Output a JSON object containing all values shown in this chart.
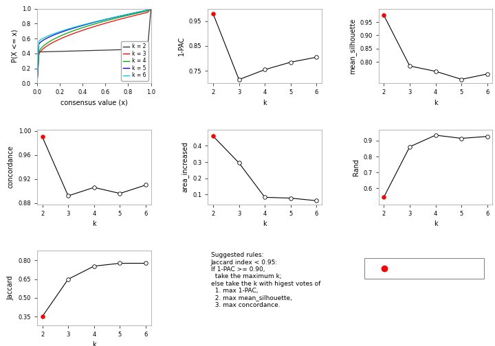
{
  "k_values": [
    2,
    3,
    4,
    5,
    6
  ],
  "pac_1minus": [
    0.98,
    0.715,
    0.755,
    0.785,
    0.805
  ],
  "mean_silhouette": [
    0.975,
    0.785,
    0.765,
    0.735,
    0.755
  ],
  "concordance": [
    0.99,
    0.892,
    0.906,
    0.896,
    0.91
  ],
  "area_increased": [
    0.46,
    0.295,
    0.083,
    0.078,
    0.062
  ],
  "rand": [
    0.545,
    0.862,
    0.935,
    0.915,
    0.927
  ],
  "jaccard": [
    0.35,
    0.65,
    0.755,
    0.778,
    0.778
  ],
  "best_k_pac": 0,
  "best_k_sil": 0,
  "best_k_conc": 0,
  "best_k_area": 0,
  "best_k_rand": 0,
  "best_k_jacc": 0,
  "ecdf_colors": [
    "#333333",
    "#FF0000",
    "#00AA00",
    "#0000FF",
    "#00CCCC"
  ],
  "ecdf_labels": [
    "k = 2",
    "k = 3",
    "k = 4",
    "k = 5",
    "k = 6"
  ],
  "line_color": "#000000",
  "best_dot_color": "#FF0000",
  "bg_color": "#FFFFFF",
  "text_color": "#000000",
  "spine_color": "#AAAAAA",
  "axis_fontsize": 7,
  "tick_fontsize": 6,
  "marker_size": 4,
  "line_width": 0.8
}
